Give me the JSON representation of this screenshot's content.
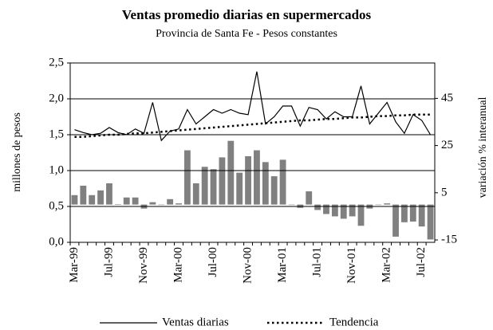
{
  "chart_data": {
    "type": "bar-line",
    "title": "Ventas promedio diarias en supermercados",
    "subtitle": "Provincia de Santa Fe - Pesos constantes",
    "ylabel": "millones de pesos",
    "y2label": "variación % interanual",
    "categories": [
      "Mar-99",
      null,
      null,
      null,
      "Jul-99",
      null,
      null,
      null,
      "Nov-99",
      null,
      null,
      null,
      "Mar-00",
      null,
      null,
      null,
      "Jul-00",
      null,
      null,
      null,
      "Nov-00",
      null,
      null,
      null,
      "Mar-01",
      null,
      null,
      null,
      "Jul-01",
      null,
      null,
      null,
      "Nov-01",
      null,
      null,
      null,
      "Mar-02",
      null,
      null,
      null,
      "Jul-02",
      null
    ],
    "ylim": [
      0,
      2.5
    ],
    "yticks": [
      {
        "value": 0,
        "label": "0,0"
      },
      {
        "value": 0.5,
        "label": "0,5"
      },
      {
        "value": 1,
        "label": "1,0"
      },
      {
        "value": 1.5,
        "label": "1,5"
      },
      {
        "value": 2,
        "label": "2,0"
      },
      {
        "value": 2.5,
        "label": "2,5"
      }
    ],
    "y2lim": [
      -16,
      60
    ],
    "y2ticks": [
      -15,
      5,
      25,
      45
    ],
    "grid": true,
    "series": [
      {
        "name": "Ventas diarias",
        "kind": "line",
        "dash": "solid",
        "color": "#000000",
        "values": [
          1.57,
          1.53,
          1.5,
          1.52,
          1.6,
          1.53,
          1.5,
          1.58,
          1.52,
          1.95,
          1.42,
          1.55,
          1.58,
          1.85,
          1.65,
          1.75,
          1.85,
          1.8,
          1.85,
          1.8,
          1.78,
          2.38,
          1.65,
          1.75,
          1.9,
          1.9,
          1.62,
          1.88,
          1.85,
          1.72,
          1.82,
          1.75,
          1.75,
          2.18,
          1.65,
          1.8,
          1.95,
          1.68,
          1.52,
          1.78,
          1.7,
          1.5
        ]
      },
      {
        "name": "Tendencia",
        "kind": "line",
        "dash": "dotted",
        "color": "#000000",
        "values": [
          1.47,
          1.47,
          1.48,
          1.49,
          1.5,
          1.5,
          1.51,
          1.52,
          1.52,
          1.53,
          1.54,
          1.55,
          1.56,
          1.57,
          1.58,
          1.59,
          1.6,
          1.61,
          1.62,
          1.63,
          1.64,
          1.65,
          1.66,
          1.67,
          1.68,
          1.69,
          1.7,
          1.7,
          1.71,
          1.72,
          1.72,
          1.73,
          1.74,
          1.74,
          1.75,
          1.76,
          1.76,
          1.77,
          1.77,
          1.78,
          1.78,
          1.78
        ]
      },
      {
        "kind": "bar",
        "axis": "y2",
        "color": "#808080",
        "values": [
          4,
          8,
          4,
          6,
          9,
          0.2,
          3,
          3,
          -1.7,
          1,
          0,
          2.3,
          0.5,
          23,
          9,
          16,
          15,
          20,
          27,
          13.5,
          20.5,
          23,
          18,
          12,
          19,
          0,
          -1.4,
          5.6,
          -2.3,
          -4,
          -5,
          -6,
          -5,
          -9,
          -1.7,
          0,
          0.5,
          -13.6,
          -7.5,
          -7.2,
          -9.3,
          -14.8
        ]
      }
    ]
  }
}
